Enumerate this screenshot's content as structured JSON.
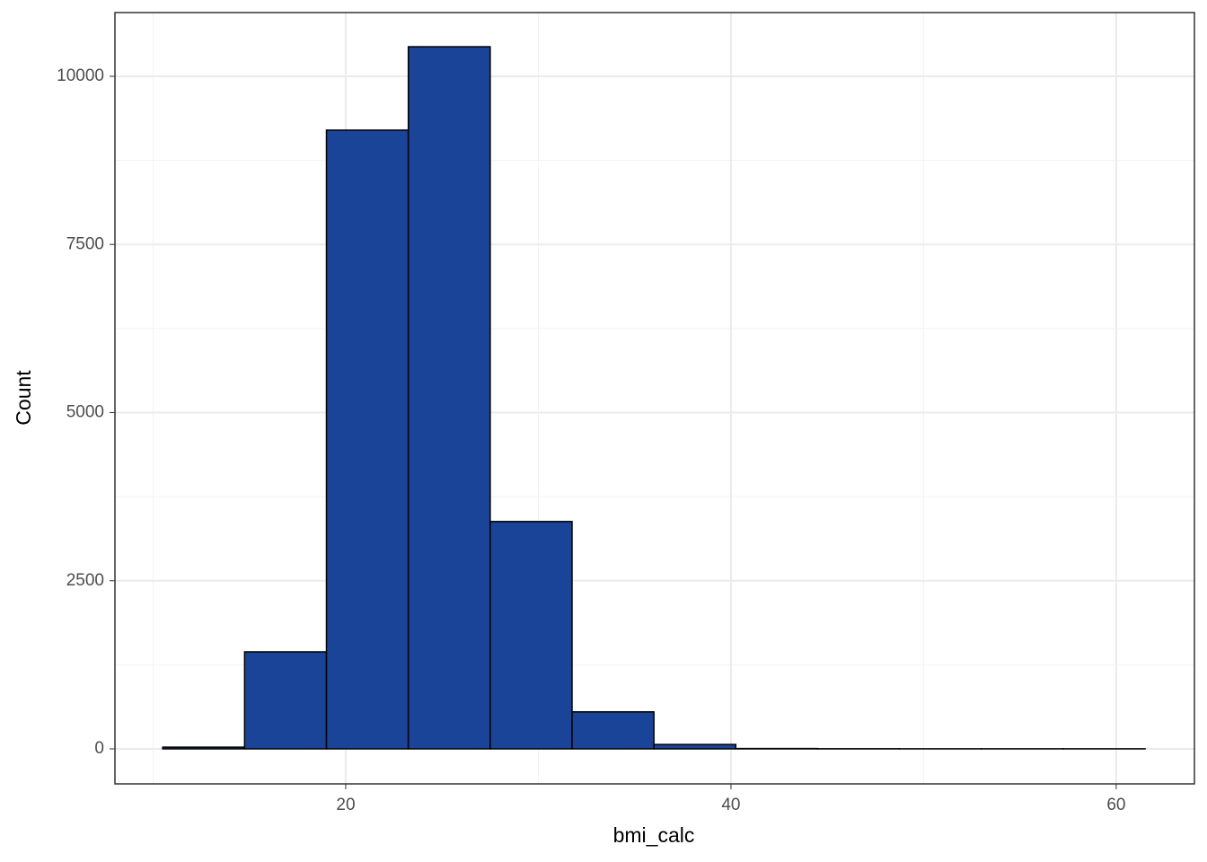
{
  "chart_data": {
    "type": "histogram",
    "x_label": "bmi_calc",
    "y_label": "Count",
    "bins": [
      10.5,
      14.75,
      19,
      23.25,
      27.5,
      31.75,
      36,
      40.25,
      44.5,
      48.75,
      53,
      57.25,
      61.5
    ],
    "values": [
      25,
      1442,
      9200,
      10440,
      3380,
      550,
      65,
      5,
      2,
      1,
      1,
      1
    ],
    "color": "#1a4498",
    "xlim": [
      8.02,
      64.06
    ],
    "xticks": [
      20,
      40,
      60
    ],
    "minor_xticks": [
      10,
      30,
      50
    ],
    "ylim": [
      -521,
      10948
    ],
    "yticks": [
      0,
      2500,
      5000,
      7500,
      10000
    ],
    "minor_yticks": [
      1250,
      3750,
      6250,
      8750
    ],
    "grid": true
  }
}
